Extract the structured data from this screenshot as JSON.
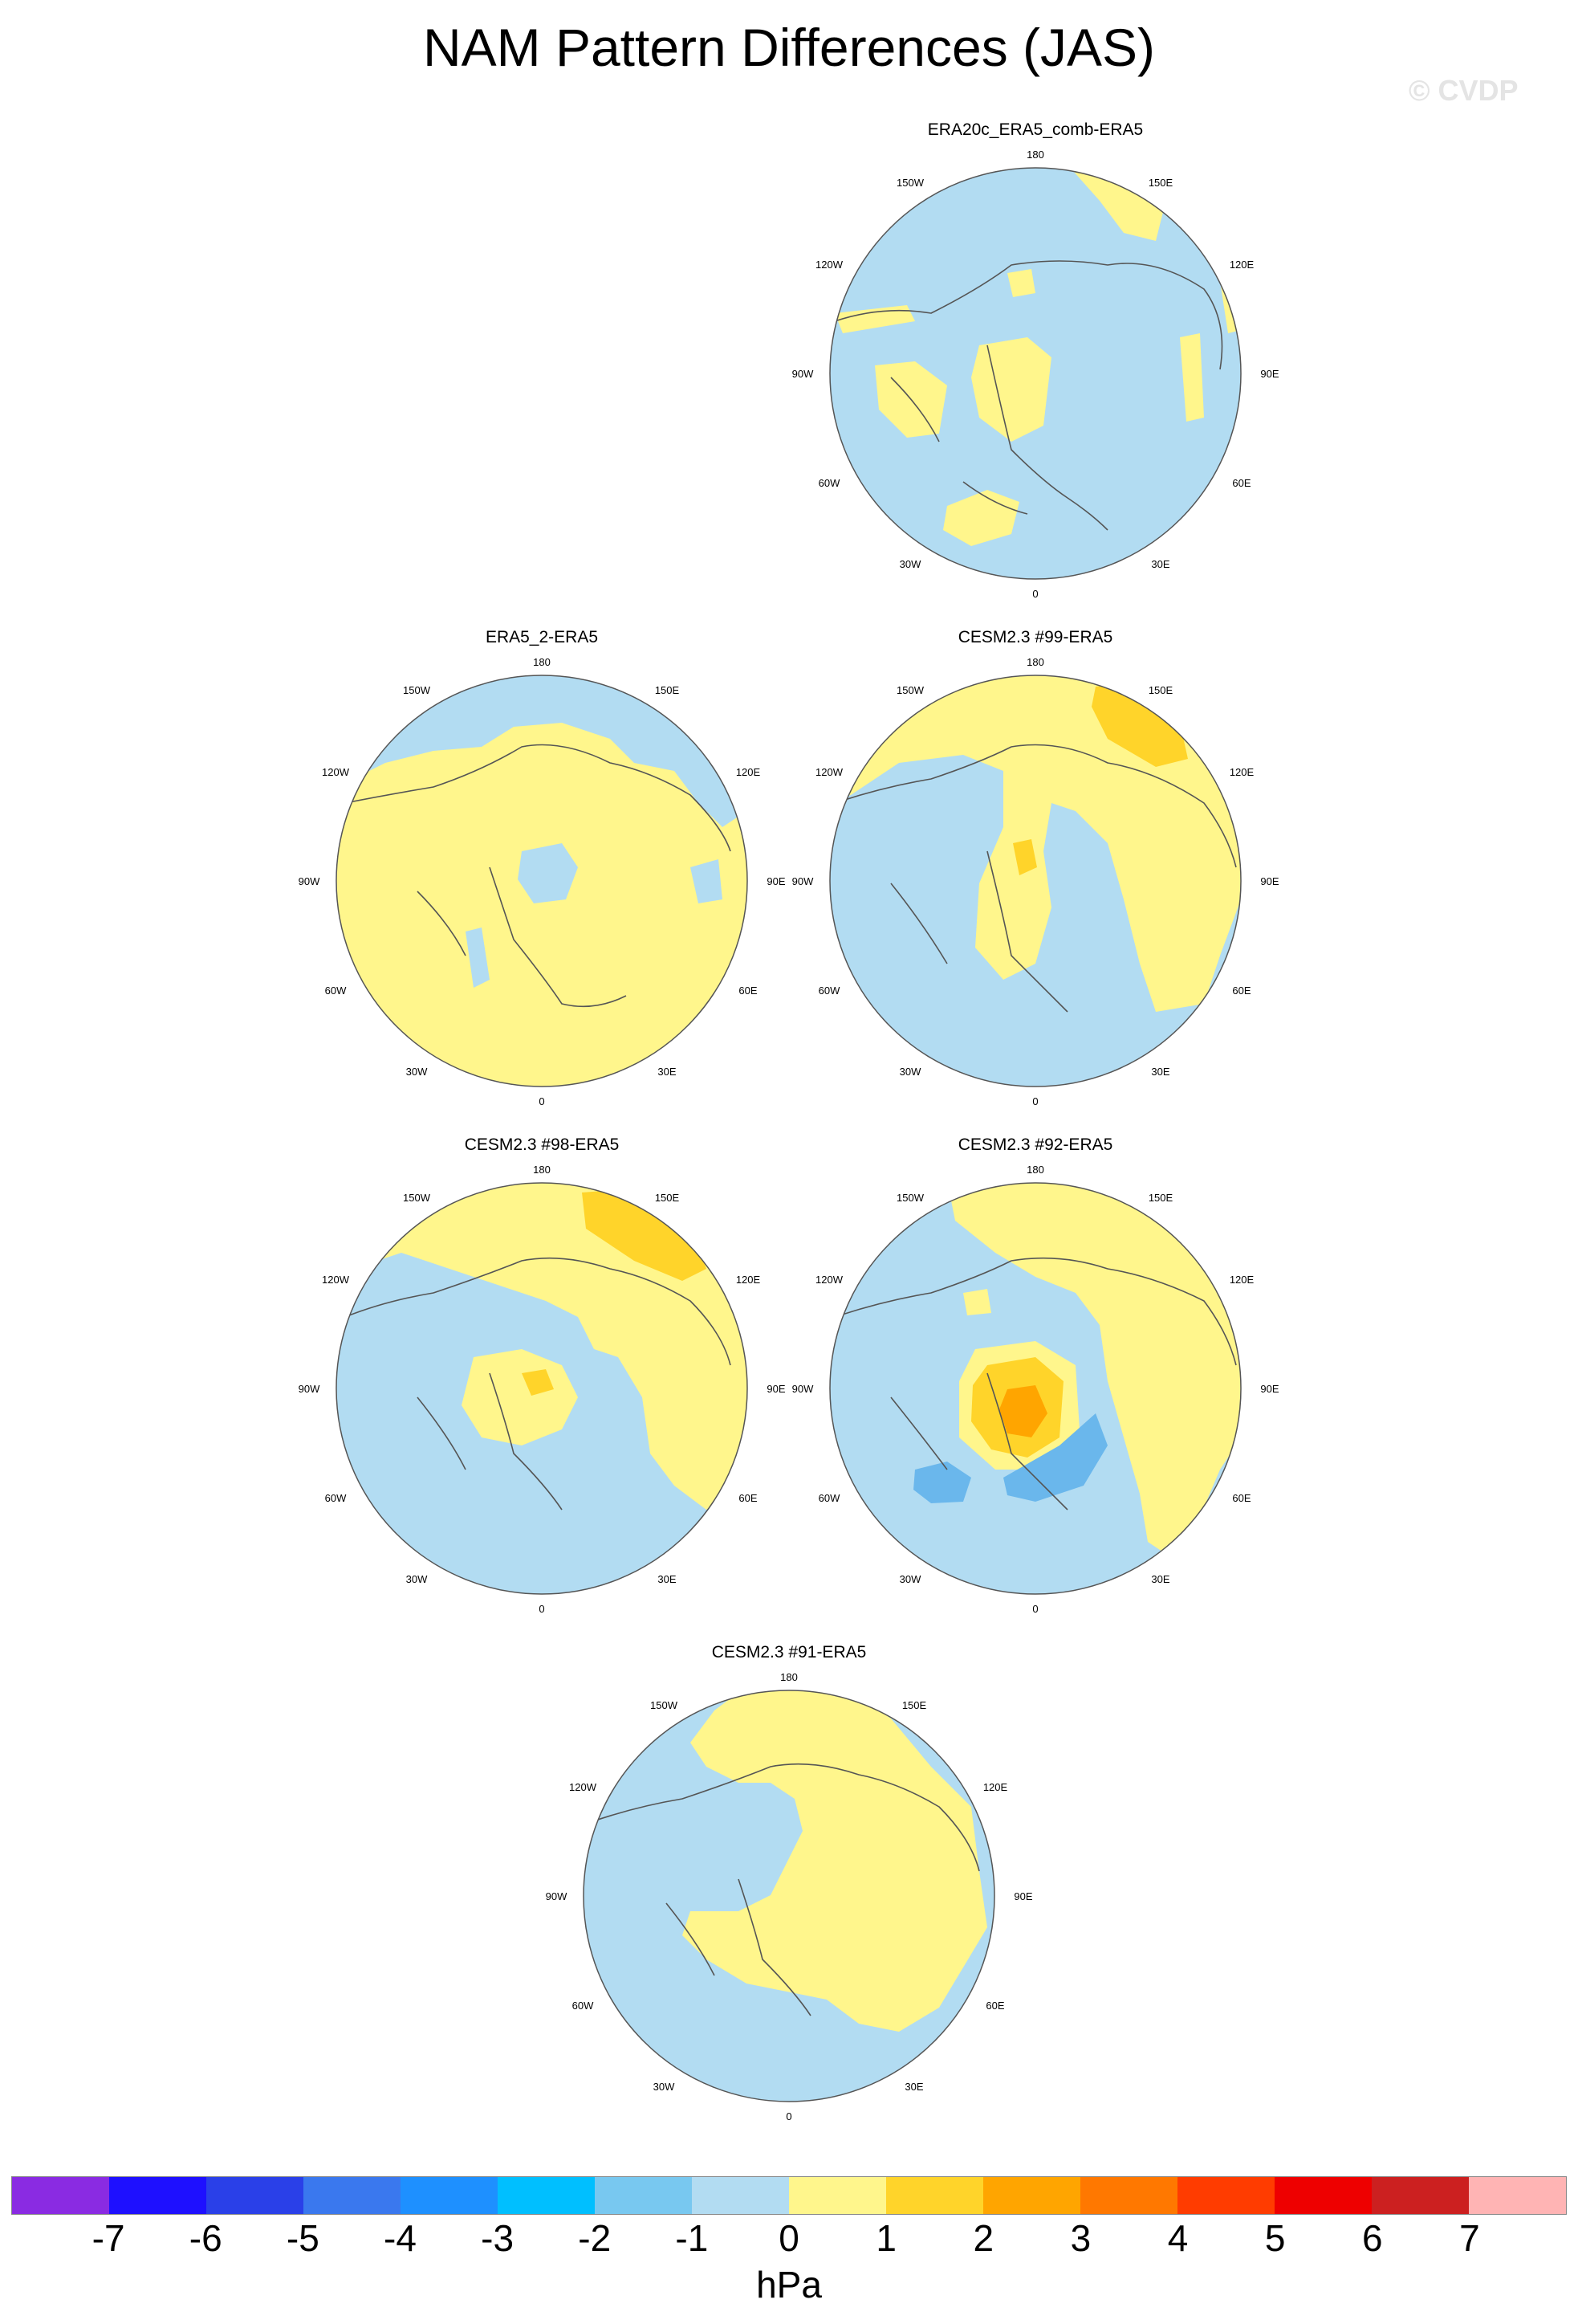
{
  "title": "NAM Pattern Differences (JAS)",
  "watermark": "© CVDP",
  "units": "hPa",
  "colors": {
    "neg_small": "#b2dcf2",
    "neg_medium": "#6ab7ec",
    "pos_small": "#fff68c",
    "pos_medium": "#ffd42a",
    "pos_large": "#ffa500",
    "coast": "#555555"
  },
  "longitude_labels": [
    "180",
    "150E",
    "120E",
    "90E",
    "60E",
    "30E",
    "0",
    "30W",
    "60W",
    "90W",
    "120W",
    "150W"
  ],
  "panels": [
    {
      "title": "ERA20c_ERA5_comb-ERA5"
    },
    {
      "title": "ERA5_2-ERA5"
    },
    {
      "title": "CESM2.3 #99-ERA5"
    },
    {
      "title": "CESM2.3 #98-ERA5"
    },
    {
      "title": "CESM2.3 #92-ERA5"
    },
    {
      "title": "CESM2.3 #91-ERA5"
    }
  ],
  "colorbar": {
    "colors": [
      "#8a2be2",
      "#1e10ff",
      "#2a40e8",
      "#3a78ee",
      "#1e90ff",
      "#00bfff",
      "#78c8f0",
      "#b2dcf2",
      "#fff68c",
      "#ffd42a",
      "#ffa500",
      "#ff7800",
      "#ff3c00",
      "#ee0000",
      "#cc2020",
      "#ffb4b4"
    ],
    "labels": [
      "-7",
      "-6",
      "-5",
      "-4",
      "-3",
      "-2",
      "-1",
      "0",
      "1",
      "2",
      "3",
      "4",
      "5",
      "6",
      "7"
    ]
  }
}
